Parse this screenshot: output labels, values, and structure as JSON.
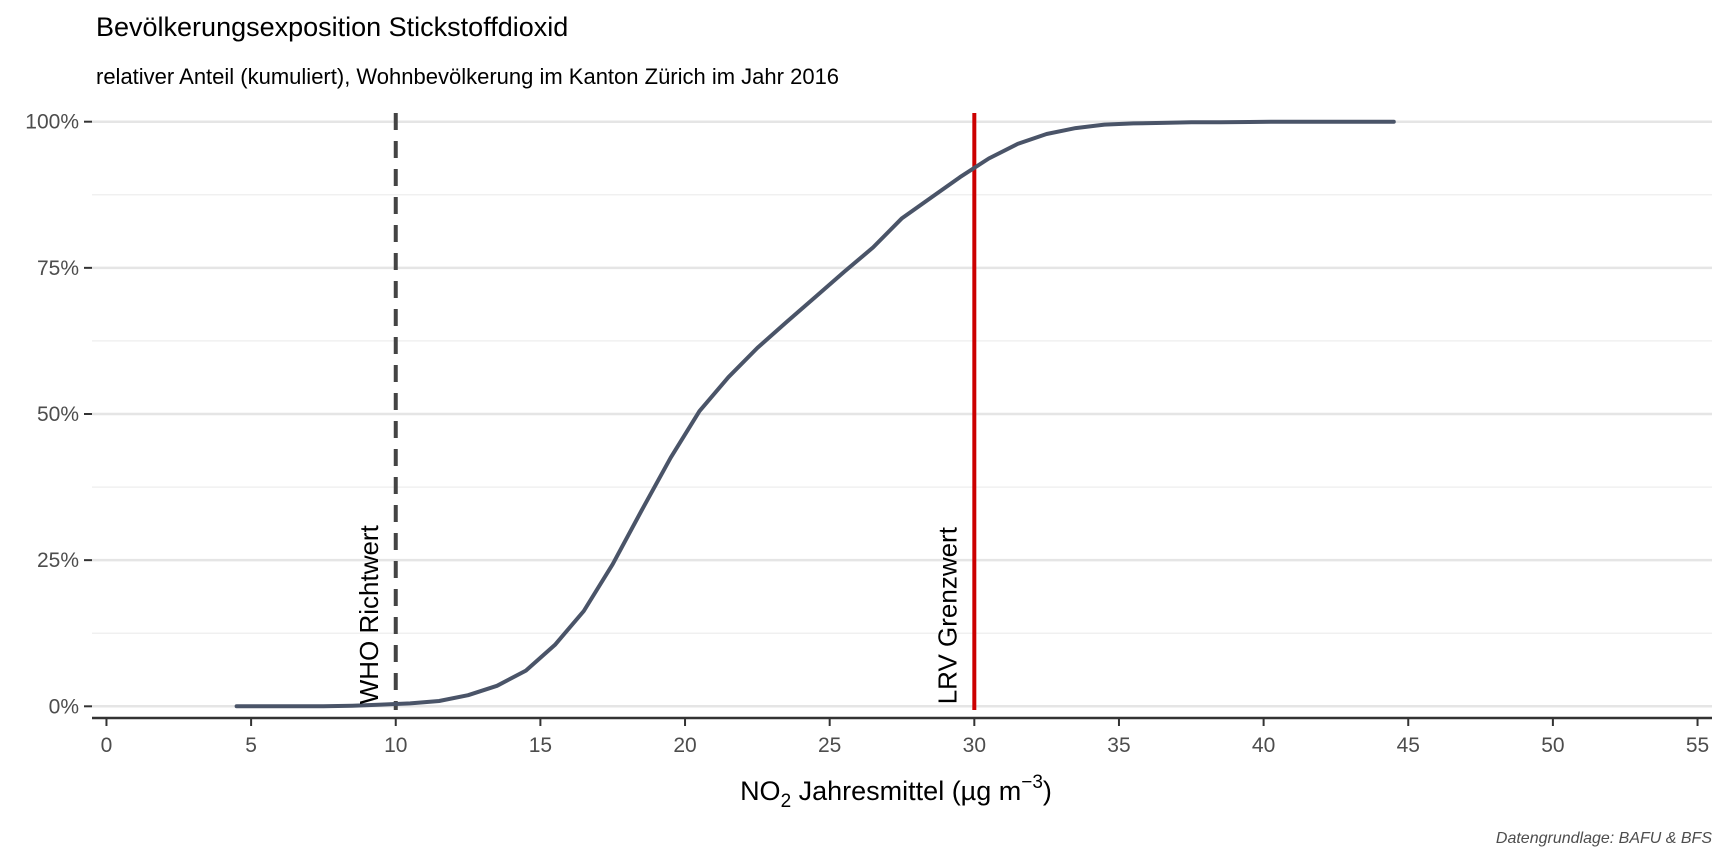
{
  "chart_data": {
    "type": "line",
    "title": "Bevölkerungsexposition Stickstoffdioxid",
    "subtitle": "relativer Anteil (kumuliert), Wohnbevölkerung im Kanton Zürich im Jahr 2016",
    "caption": "Datengrundlage: BAFU & BFS",
    "xlabel": {
      "main": "NO",
      "sub": "2",
      "rest": " Jahresmittel (µg m",
      "sup": "−3",
      "end": ")"
    },
    "ylabel": "",
    "xlim": [
      -0.5,
      55.5
    ],
    "ylim": [
      -0.02,
      1.02
    ],
    "x_ticks": [
      0,
      5,
      10,
      15,
      20,
      25,
      30,
      35,
      40,
      45,
      50,
      55
    ],
    "x_tick_labels": [
      "0",
      "5",
      "10",
      "15",
      "20",
      "25",
      "30",
      "35",
      "40",
      "45",
      "50",
      "55"
    ],
    "y_ticks": [
      0,
      0.25,
      0.5,
      0.75,
      1
    ],
    "y_tick_labels": [
      "0%",
      "25%",
      "50%",
      "75%",
      "100%"
    ],
    "grid": true,
    "series": [
      {
        "color": "#4a5468",
        "points": [
          [
            4.5,
            0.0
          ],
          [
            5.5,
            0.0
          ],
          [
            6.5,
            0.0
          ],
          [
            7.5,
            0.0
          ],
          [
            8.5,
            0.001
          ],
          [
            9.5,
            0.003
          ],
          [
            10.5,
            0.005
          ],
          [
            11.5,
            0.009
          ],
          [
            12.5,
            0.019
          ],
          [
            13.5,
            0.035
          ],
          [
            14.5,
            0.061
          ],
          [
            15.5,
            0.105
          ],
          [
            16.5,
            0.163
          ],
          [
            17.5,
            0.243
          ],
          [
            18.5,
            0.335
          ],
          [
            19.5,
            0.425
          ],
          [
            20.5,
            0.505
          ],
          [
            21.5,
            0.563
          ],
          [
            22.5,
            0.613
          ],
          [
            23.5,
            0.657
          ],
          [
            24.5,
            0.7
          ],
          [
            25.5,
            0.743
          ],
          [
            26.5,
            0.785
          ],
          [
            27.5,
            0.835
          ],
          [
            28.5,
            0.87
          ],
          [
            29.5,
            0.905
          ],
          [
            30.5,
            0.937
          ],
          [
            31.5,
            0.962
          ],
          [
            32.5,
            0.979
          ],
          [
            33.5,
            0.989
          ],
          [
            34.5,
            0.995
          ],
          [
            35.5,
            0.997
          ],
          [
            36.5,
            0.998
          ],
          [
            37.5,
            0.999
          ],
          [
            38.5,
            0.999
          ],
          [
            39.5,
            0.9995
          ],
          [
            40.5,
            1.0
          ],
          [
            41.5,
            1.0
          ],
          [
            42.5,
            1.0
          ],
          [
            43.5,
            1.0
          ],
          [
            44.5,
            1.0
          ]
        ]
      }
    ],
    "reference_lines": [
      {
        "x": 10,
        "label": "WHO Richtwert",
        "color": "#444444",
        "style": "dashed"
      },
      {
        "x": 30,
        "label": "LRV Grenzwert",
        "color": "#cc0000",
        "style": "solid"
      }
    ]
  }
}
